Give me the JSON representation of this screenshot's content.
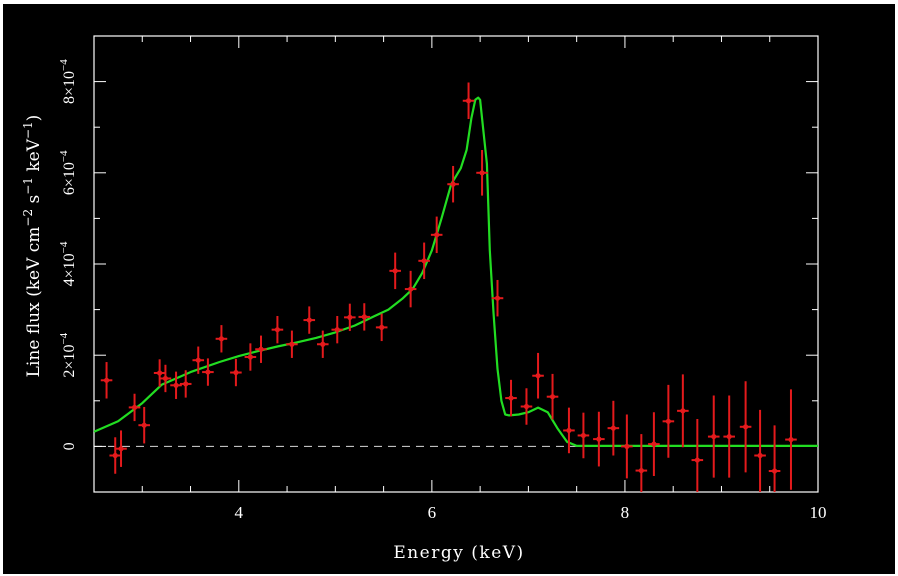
{
  "chart_data": {
    "type": "scatter",
    "title": "",
    "xlabel": "Energy (keV)",
    "ylabel": {
      "parts": [
        "Line flux (keV cm",
        "−2",
        " s",
        "−1",
        " keV",
        "−1",
        ")"
      ]
    },
    "xlim": [
      2.5,
      10
    ],
    "ylim": [
      -0.0001,
      0.0009
    ],
    "x_ticks": [
      {
        "value": 4,
        "label": "4"
      },
      {
        "value": 6,
        "label": "6"
      },
      {
        "value": 8,
        "label": "8"
      },
      {
        "value": 10,
        "label": "10"
      }
    ],
    "y_ticks": [
      {
        "value": 0,
        "base": "0",
        "exp": ""
      },
      {
        "value": 0.0002,
        "base": "2×10",
        "exp": "−4"
      },
      {
        "value": 0.0004,
        "base": "4×10",
        "exp": "−4"
      },
      {
        "value": 0.0006,
        "base": "6×10",
        "exp": "−4"
      },
      {
        "value": 0.0008,
        "base": "8×10",
        "exp": "−4"
      }
    ],
    "zero_line": true,
    "colors": {
      "data": "#e41a1c",
      "model": "#22dd22",
      "axes": "#ffffff",
      "background": "#000000"
    },
    "series": [
      {
        "type": "errorbar",
        "x": [
          2.63,
          2.72,
          2.78,
          2.92,
          3.02,
          3.18,
          3.24,
          3.35,
          3.45,
          3.58,
          3.68,
          3.82,
          3.97,
          4.12,
          4.23,
          4.4,
          4.55,
          4.73,
          4.87,
          5.02,
          5.15,
          5.3,
          5.48,
          5.62,
          5.78,
          5.92,
          6.05,
          6.22,
          6.38,
          6.52,
          6.68,
          6.82,
          6.98,
          7.1,
          7.25,
          7.42,
          7.57,
          7.73,
          7.88,
          8.02,
          8.17,
          8.3,
          8.45,
          8.6,
          8.75,
          8.92,
          9.08,
          9.25,
          9.4,
          9.55,
          9.72
        ],
        "y": [
          0.000145,
          -2e-05,
          -5e-06,
          8.55e-05,
          4.65e-05,
          0.000161,
          0.000149,
          0.000134,
          0.000137,
          0.000189,
          0.000163,
          0.000236,
          0.000162,
          0.000196,
          0.000213,
          0.000256,
          0.000224,
          0.000277,
          0.000224,
          0.000256,
          0.000283,
          0.000284,
          0.000261,
          0.000385,
          0.000345,
          0.000407,
          0.000464,
          0.000575,
          0.000758,
          0.0006,
          0.000325,
          0.000106,
          8.75e-05,
          0.000155,
          0.000109,
          3.5e-05,
          2.4e-05,
          1.6e-05,
          4e-05,
          0.0,
          -5.3e-05,
          5e-06,
          5.5e-05,
          7.8e-05,
          -3e-05,
          2.15e-05,
          2.15e-05,
          4.3e-05,
          -2e-05,
          -5.4e-05,
          1.5e-05
        ],
        "xerr": [
          0.06,
          0.06,
          0.06,
          0.06,
          0.06,
          0.06,
          0.06,
          0.06,
          0.06,
          0.06,
          0.06,
          0.06,
          0.06,
          0.06,
          0.06,
          0.06,
          0.06,
          0.06,
          0.06,
          0.06,
          0.06,
          0.06,
          0.06,
          0.06,
          0.06,
          0.06,
          0.06,
          0.06,
          0.06,
          0.06,
          0.06,
          0.06,
          0.06,
          0.06,
          0.06,
          0.06,
          0.06,
          0.06,
          0.06,
          0.06,
          0.06,
          0.06,
          0.06,
          0.06,
          0.06,
          0.06,
          0.06,
          0.06,
          0.06,
          0.06,
          0.06
        ],
        "yerr": [
          4e-05,
          4e-05,
          4e-05,
          3e-05,
          4e-05,
          3e-05,
          3e-05,
          3e-05,
          3e-05,
          3e-05,
          3e-05,
          3e-05,
          3e-05,
          3e-05,
          3e-05,
          3e-05,
          3e-05,
          3e-05,
          3e-05,
          3e-05,
          3e-05,
          3e-05,
          3e-05,
          4e-05,
          4e-05,
          4e-05,
          4e-05,
          4e-05,
          4e-05,
          5e-05,
          4e-05,
          4e-05,
          4e-05,
          5e-05,
          5e-05,
          5e-05,
          5e-05,
          6e-05,
          6e-05,
          7e-05,
          8e-05,
          7e-05,
          8e-05,
          8e-05,
          9e-05,
          9e-05,
          9e-05,
          0.0001,
          0.0001,
          0.0001,
          0.00011
        ]
      },
      {
        "type": "line",
        "x": [
          2.5,
          2.75,
          3.0,
          3.2,
          3.5,
          3.8,
          4.0,
          4.2,
          4.4,
          4.6,
          4.8,
          5.0,
          5.2,
          5.4,
          5.55,
          5.7,
          5.8,
          5.9,
          6.0,
          6.1,
          6.2,
          6.3,
          6.36,
          6.41,
          6.45,
          6.48,
          6.5,
          6.53,
          6.57,
          6.6,
          6.64,
          6.68,
          6.72,
          6.76,
          6.8,
          6.9,
          7.0,
          7.1,
          7.2,
          7.3,
          7.4,
          7.5,
          10.0
        ],
        "y": [
          3.2e-05,
          5.5e-05,
          9.5e-05,
          0.000135,
          0.000163,
          0.000185,
          0.000198,
          0.000209,
          0.000219,
          0.000228,
          0.000238,
          0.00025,
          0.000265,
          0.000285,
          0.0003,
          0.000325,
          0.000345,
          0.00038,
          0.00043,
          0.0005,
          0.000575,
          0.00061,
          0.00065,
          0.00072,
          0.00076,
          0.000765,
          0.00076,
          0.0007,
          0.00062,
          0.00043,
          0.00029,
          0.00017,
          0.0001,
          7e-05,
          6.8e-05,
          7e-05,
          7.5e-05,
          8.5e-05,
          7.5e-05,
          4e-05,
          1e-05,
          1e-06,
          1e-06
        ]
      }
    ]
  }
}
